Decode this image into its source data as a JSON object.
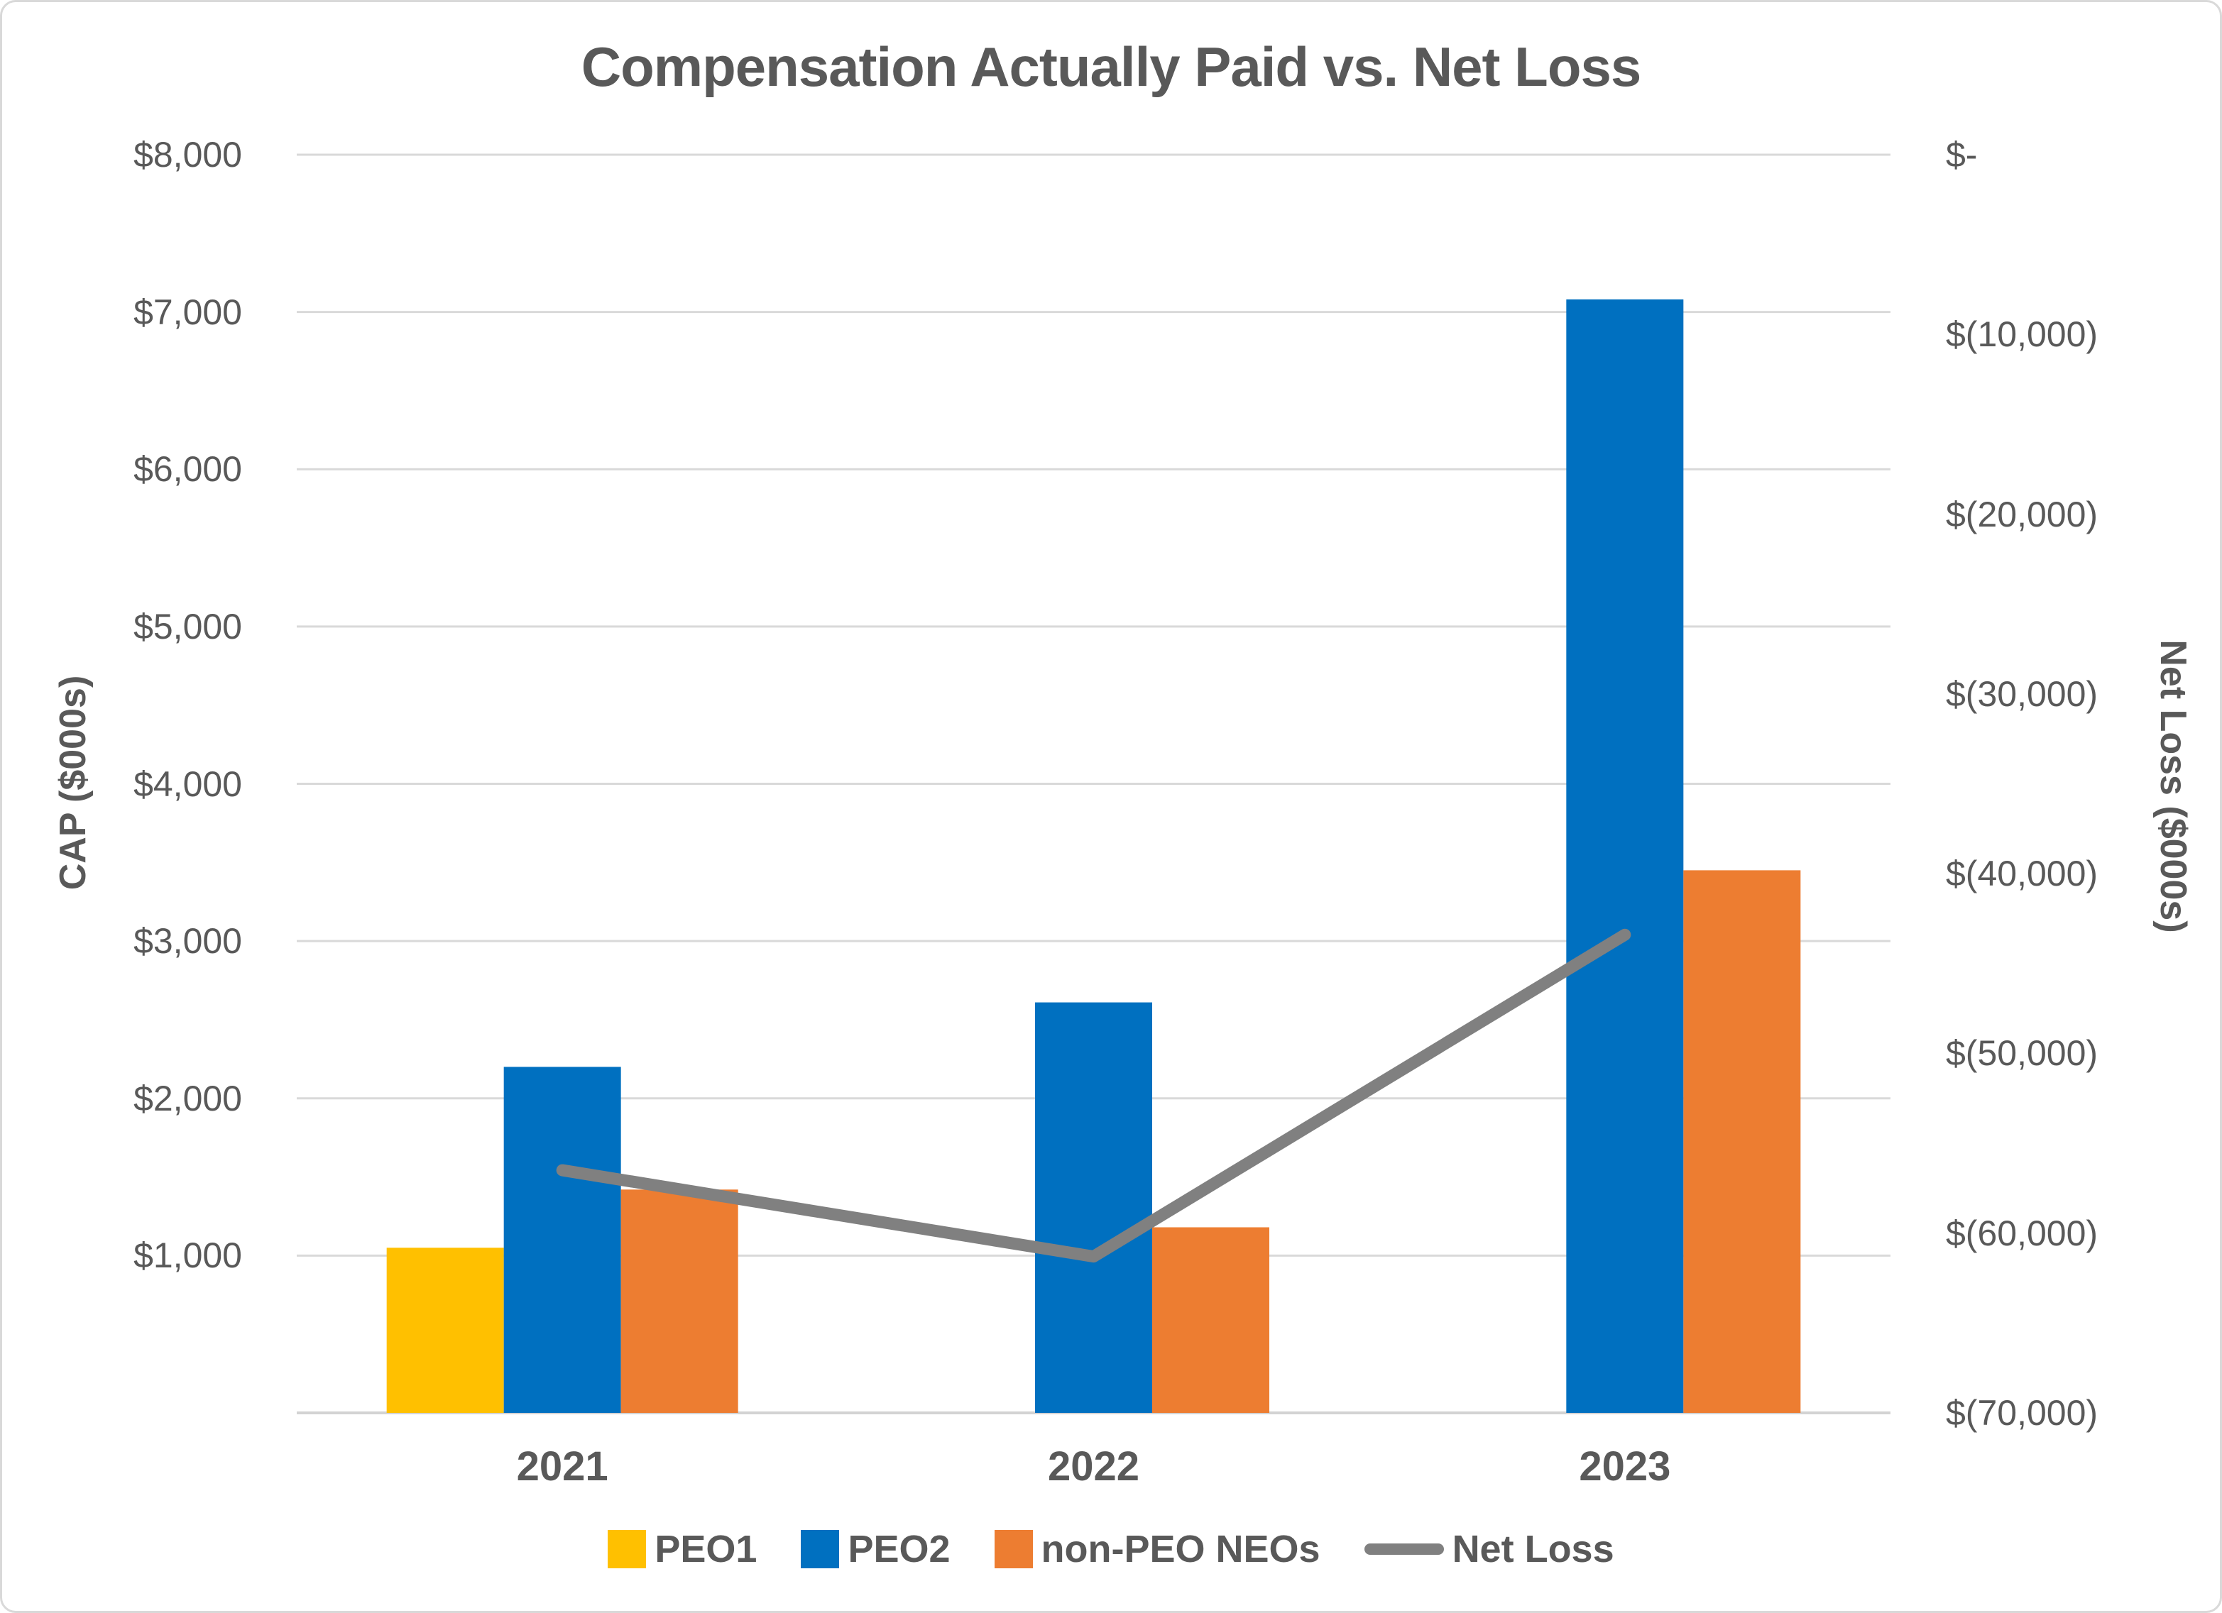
{
  "title": "Compensation Actually Paid vs. Net Loss",
  "chart_data": {
    "type": "bar",
    "subtype": "grouped bars with overlay line, dual y-axes",
    "categories": [
      "2021",
      "2022",
      "2023"
    ],
    "series": [
      {
        "name": "PEO1",
        "kind": "bar",
        "axis": "left",
        "color": "#FFC000",
        "values": [
          1050,
          null,
          null
        ]
      },
      {
        "name": "PEO2",
        "kind": "bar",
        "axis": "left",
        "color": "#0070C0",
        "values": [
          2200,
          2610,
          7080
        ]
      },
      {
        "name": "non-PEO NEOs",
        "kind": "bar",
        "axis": "left",
        "color": "#ED7D31",
        "values": [
          1420,
          1180,
          3450
        ]
      },
      {
        "name": "Net Loss",
        "kind": "line",
        "axis": "right",
        "color": "#808080",
        "values": [
          -56500,
          -61300,
          -43400
        ]
      }
    ],
    "left_axis": {
      "title": "CAP ($000s)",
      "min": 0,
      "max": 8000,
      "step": 1000,
      "tick_values": [
        8000,
        7000,
        6000,
        5000,
        4000,
        3000,
        2000,
        1000
      ],
      "tick_labels": [
        "$8,000",
        "$7,000",
        "$6,000",
        "$5,000",
        "$4,000",
        "$3,000",
        "$2,000",
        "$1,000"
      ]
    },
    "right_axis": {
      "title": "Net Loss ($000s)",
      "min": -70000,
      "max": 0,
      "step": 10000,
      "tick_values": [
        0,
        -10000,
        -20000,
        -30000,
        -40000,
        -50000,
        -60000,
        -70000
      ],
      "tick_labels": [
        "$-",
        "$(10,000)",
        "$(20,000)",
        "$(30,000)",
        "$(40,000)",
        "$(50,000)",
        "$(60,000)",
        "$(70,000)"
      ]
    },
    "grid": true,
    "legend_position": "bottom"
  },
  "legend": {
    "items": [
      {
        "label": "PEO1",
        "swatch": "square",
        "color": "#FFC000"
      },
      {
        "label": "PEO2",
        "swatch": "square",
        "color": "#0070C0"
      },
      {
        "label": "non-PEO NEOs",
        "swatch": "square",
        "color": "#ED7D31"
      },
      {
        "label": "Net Loss",
        "swatch": "line",
        "color": "#808080"
      }
    ]
  },
  "colors": {
    "background": "#FFFFFF",
    "border": "#D9D9D9",
    "gridline": "#D9D9D9",
    "axis_line": "#D3D3D3",
    "title_text": "#595959",
    "axis_text": "#595959"
  }
}
